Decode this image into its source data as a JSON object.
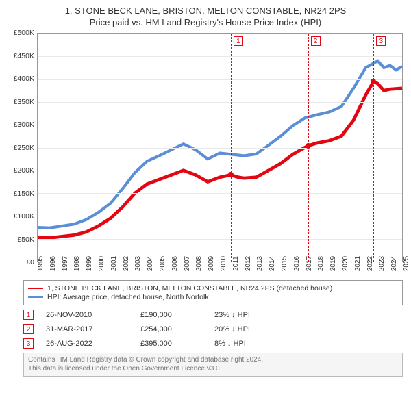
{
  "title": {
    "line1": "1, STONE BECK LANE, BRISTON, MELTON CONSTABLE, NR24 2PS",
    "line2": "Price paid vs. HM Land Registry's House Price Index (HPI)",
    "fontsize": 13,
    "color": "#333333"
  },
  "chart": {
    "type": "line",
    "background_color": "#ffffff",
    "grid_color": "#e9e9e9",
    "axis_color": "#999999",
    "label_fontsize": 10.5,
    "x": {
      "min": 1995,
      "max": 2025,
      "ticks": [
        1995,
        1996,
        1997,
        1998,
        1999,
        2000,
        2001,
        2002,
        2003,
        2004,
        2005,
        2006,
        2007,
        2008,
        2009,
        2010,
        2011,
        2012,
        2013,
        2014,
        2015,
        2016,
        2017,
        2018,
        2019,
        2020,
        2021,
        2022,
        2023,
        2024,
        2025
      ]
    },
    "y": {
      "min": 0,
      "max": 500000,
      "tick_step": 50000,
      "ticks": [
        0,
        50000,
        100000,
        150000,
        200000,
        250000,
        300000,
        350000,
        400000,
        450000,
        500000
      ],
      "tick_labels": [
        "£0",
        "£50K",
        "£100K",
        "£150K",
        "£200K",
        "£250K",
        "£300K",
        "£350K",
        "£400K",
        "£450K",
        "£500K"
      ],
      "currency": "GBP"
    },
    "series": [
      {
        "name": "1, STONE BECK LANE, BRISTON, MELTON CONSTABLE, NR24 2PS (detached house)",
        "color": "#e30613",
        "line_width": 1.6,
        "points": [
          [
            1995.0,
            53000
          ],
          [
            1996.0,
            52000
          ],
          [
            1997.0,
            55000
          ],
          [
            1998.0,
            58000
          ],
          [
            1999.0,
            65000
          ],
          [
            2000.0,
            78000
          ],
          [
            2001.0,
            95000
          ],
          [
            2002.0,
            120000
          ],
          [
            2003.0,
            150000
          ],
          [
            2004.0,
            170000
          ],
          [
            2005.0,
            180000
          ],
          [
            2006.0,
            190000
          ],
          [
            2007.0,
            200000
          ],
          [
            2008.0,
            190000
          ],
          [
            2009.0,
            175000
          ],
          [
            2010.0,
            185000
          ],
          [
            2010.9,
            190000
          ],
          [
            2011.5,
            185000
          ],
          [
            2012.0,
            183000
          ],
          [
            2013.0,
            185000
          ],
          [
            2014.0,
            200000
          ],
          [
            2015.0,
            215000
          ],
          [
            2016.0,
            235000
          ],
          [
            2017.25,
            254000
          ],
          [
            2018.0,
            260000
          ],
          [
            2019.0,
            265000
          ],
          [
            2020.0,
            275000
          ],
          [
            2021.0,
            310000
          ],
          [
            2022.0,
            365000
          ],
          [
            2022.65,
            395000
          ],
          [
            2023.0,
            390000
          ],
          [
            2023.5,
            375000
          ],
          [
            2024.0,
            378000
          ],
          [
            2025.0,
            380000
          ]
        ]
      },
      {
        "name": "HPI: Average price, detached house, North Norfolk",
        "color": "#5a8fd6",
        "line_width": 1.4,
        "points": [
          [
            1995.0,
            75000
          ],
          [
            1996.0,
            74000
          ],
          [
            1997.0,
            78000
          ],
          [
            1998.0,
            82000
          ],
          [
            1999.0,
            92000
          ],
          [
            2000.0,
            108000
          ],
          [
            2001.0,
            128000
          ],
          [
            2002.0,
            160000
          ],
          [
            2003.0,
            195000
          ],
          [
            2004.0,
            220000
          ],
          [
            2005.0,
            232000
          ],
          [
            2006.0,
            245000
          ],
          [
            2007.0,
            258000
          ],
          [
            2008.0,
            245000
          ],
          [
            2009.0,
            225000
          ],
          [
            2010.0,
            238000
          ],
          [
            2011.0,
            235000
          ],
          [
            2012.0,
            232000
          ],
          [
            2013.0,
            236000
          ],
          [
            2014.0,
            255000
          ],
          [
            2015.0,
            275000
          ],
          [
            2016.0,
            298000
          ],
          [
            2017.0,
            315000
          ],
          [
            2018.0,
            322000
          ],
          [
            2019.0,
            328000
          ],
          [
            2020.0,
            340000
          ],
          [
            2021.0,
            380000
          ],
          [
            2022.0,
            425000
          ],
          [
            2023.0,
            440000
          ],
          [
            2023.5,
            425000
          ],
          [
            2024.0,
            430000
          ],
          [
            2024.5,
            420000
          ],
          [
            2025.0,
            428000
          ]
        ]
      }
    ],
    "transaction_markers": [
      {
        "n": "1",
        "year": 2010.9,
        "price": 190000,
        "color": "#e30613"
      },
      {
        "n": "2",
        "year": 2017.25,
        "price": 254000,
        "color": "#e30613"
      },
      {
        "n": "3",
        "year": 2022.65,
        "price": 395000,
        "color": "#e30613"
      }
    ]
  },
  "legend": {
    "border_color": "#999999",
    "fontsize": 10.5,
    "items": [
      {
        "color": "#e30613",
        "label": "1, STONE BECK LANE, BRISTON, MELTON CONSTABLE, NR24 2PS (detached house)"
      },
      {
        "color": "#5a8fd6",
        "label": "HPI: Average price, detached house, North Norfolk"
      }
    ]
  },
  "transactions": {
    "box_border_color": "#e30613",
    "box_text_color": "#e30613",
    "fontsize": 11,
    "rows": [
      {
        "n": "1",
        "date": "26-NOV-2010",
        "price": "£190,000",
        "diff": "23% ↓ HPI"
      },
      {
        "n": "2",
        "date": "31-MAR-2017",
        "price": "£254,000",
        "diff": "20% ↓ HPI"
      },
      {
        "n": "3",
        "date": "26-AUG-2022",
        "price": "£395,000",
        "diff": "8% ↓ HPI"
      }
    ]
  },
  "footer": {
    "border_color": "#bbbbbb",
    "bg_color": "#f5f5f5",
    "text_color": "#777777",
    "fontsize": 10,
    "line1": "Contains HM Land Registry data © Crown copyright and database right 2024.",
    "line2": "This data is licensed under the Open Government Licence v3.0."
  }
}
